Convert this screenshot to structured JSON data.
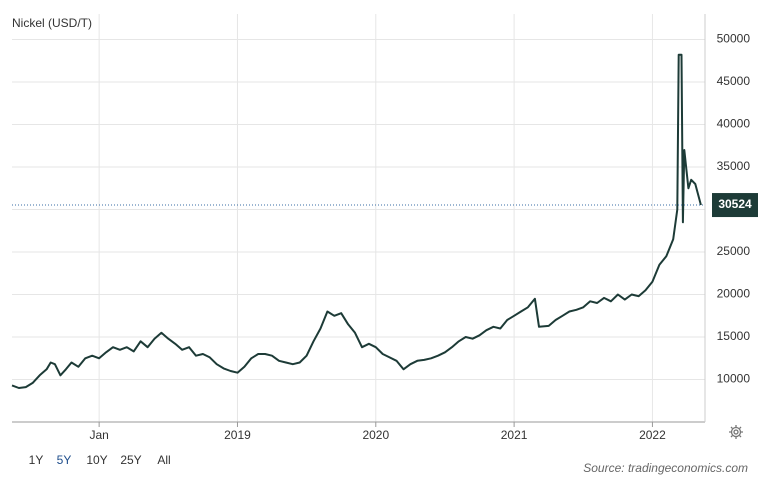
{
  "chart_data": {
    "type": "line",
    "title": "Nickel (USD/T)",
    "x": [
      2017.37,
      2017.42,
      2017.47,
      2017.52,
      2017.57,
      2017.62,
      2017.65,
      2017.68,
      2017.72,
      2017.76,
      2017.8,
      2017.85,
      2017.9,
      2017.95,
      2018.0,
      2018.05,
      2018.1,
      2018.15,
      2018.2,
      2018.25,
      2018.3,
      2018.35,
      2018.4,
      2018.45,
      2018.5,
      2018.55,
      2018.6,
      2018.65,
      2018.7,
      2018.75,
      2018.8,
      2018.85,
      2018.9,
      2018.95,
      2019.0,
      2019.05,
      2019.1,
      2019.15,
      2019.2,
      2019.25,
      2019.3,
      2019.35,
      2019.4,
      2019.45,
      2019.5,
      2019.55,
      2019.6,
      2019.65,
      2019.7,
      2019.75,
      2019.8,
      2019.85,
      2019.9,
      2019.95,
      2020.0,
      2020.05,
      2020.1,
      2020.15,
      2020.2,
      2020.25,
      2020.3,
      2020.35,
      2020.4,
      2020.45,
      2020.5,
      2020.55,
      2020.6,
      2020.65,
      2020.7,
      2020.75,
      2020.8,
      2020.85,
      2020.9,
      2020.95,
      2021.0,
      2021.05,
      2021.1,
      2021.15,
      2021.18,
      2021.25,
      2021.3,
      2021.35,
      2021.4,
      2021.45,
      2021.5,
      2021.55,
      2021.6,
      2021.65,
      2021.7,
      2021.75,
      2021.8,
      2021.85,
      2021.9,
      2021.95,
      2022.0,
      2022.05,
      2022.1,
      2022.15,
      2022.18,
      2022.19,
      2022.21,
      2022.22,
      2022.23,
      2022.26,
      2022.28,
      2022.31,
      2022.35
    ],
    "series": [
      {
        "name": "Nickel",
        "color": "#1d3b37",
        "values": [
          9300,
          9000,
          9100,
          9600,
          10500,
          11200,
          12000,
          11800,
          10500,
          11200,
          12000,
          11500,
          12500,
          12800,
          12500,
          13200,
          13800,
          13500,
          13800,
          13300,
          14500,
          13800,
          14800,
          15500,
          14800,
          14200,
          13500,
          13800,
          12800,
          13000,
          12600,
          11800,
          11300,
          11000,
          10800,
          11500,
          12500,
          13000,
          13000,
          12800,
          12200,
          12000,
          11800,
          12000,
          12800,
          14500,
          16000,
          18000,
          17500,
          17800,
          16500,
          15500,
          13800,
          14200,
          13800,
          13000,
          12600,
          12200,
          11200,
          11800,
          12200,
          12300,
          12500,
          12800,
          13200,
          13800,
          14500,
          15000,
          14800,
          15200,
          15800,
          16200,
          16000,
          17000,
          17500,
          18000,
          18500,
          19500,
          16200,
          16300,
          17000,
          17500,
          18000,
          18200,
          18500,
          19200,
          19000,
          19600,
          19200,
          20000,
          19400,
          20000,
          19800,
          20500,
          21500,
          23500,
          24500,
          26500,
          30000,
          48200,
          48200,
          28500,
          37000,
          32500,
          33500,
          33000,
          30524
        ]
      }
    ],
    "xlim": [
      2017.37,
      2022.38
    ],
    "xticks": [
      {
        "value": 2018,
        "label": "Jan"
      },
      2019,
      2020,
      2021,
      2022
    ],
    "ylim": [
      5000,
      53000
    ],
    "yticks": [
      10000,
      15000,
      20000,
      25000,
      30000,
      35000,
      40000,
      45000,
      50000
    ],
    "grid": true,
    "range_buttons": [
      "1Y",
      "5Y",
      "10Y",
      "25Y",
      "All"
    ],
    "selected_range": 1,
    "source": "Source: tradingeconomics.com"
  }
}
